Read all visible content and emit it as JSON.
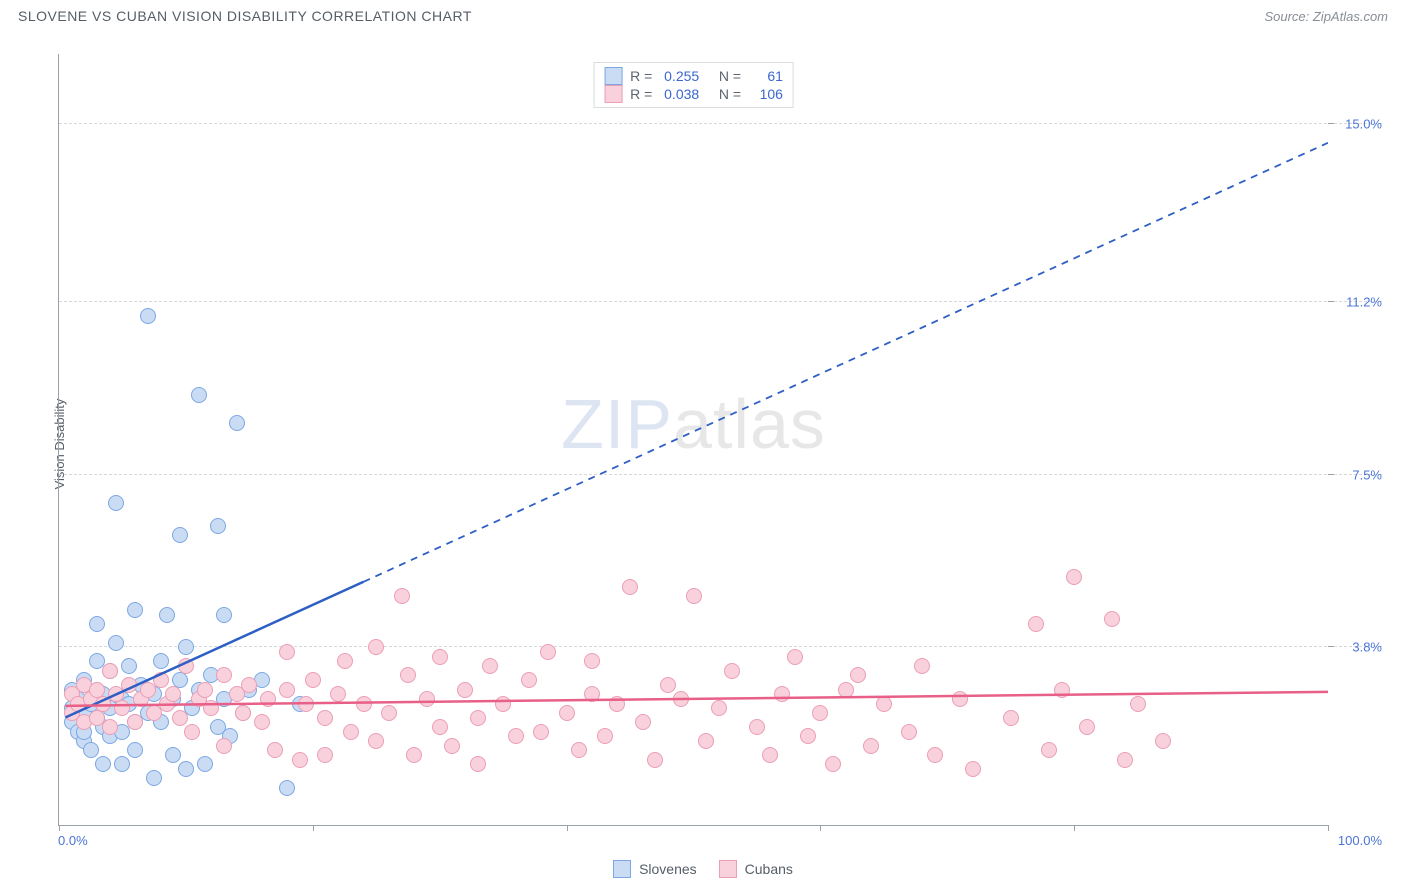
{
  "title": "SLOVENE VS CUBAN VISION DISABILITY CORRELATION CHART",
  "source": "Source: ZipAtlas.com",
  "yaxis_label": "Vision Disability",
  "watermark": {
    "zip": "ZIP",
    "atlas": "atlas"
  },
  "axes": {
    "x_min_label": "0.0%",
    "x_max_label": "100.0%",
    "x_min": 0,
    "x_max": 100,
    "y_min": 0,
    "y_max": 16.5,
    "y_gridlines": [
      {
        "v": 3.8,
        "label": "3.8%"
      },
      {
        "v": 7.5,
        "label": "7.5%"
      },
      {
        "v": 11.2,
        "label": "11.2%"
      },
      {
        "v": 15.0,
        "label": "15.0%"
      }
    ],
    "x_ticks": [
      0,
      20,
      40,
      60,
      80,
      100
    ]
  },
  "grid_color": "#d5d9dd",
  "axis_tick_label_color": "#4b74d6",
  "series": [
    {
      "key": "slovenes",
      "name": "Slovenes",
      "fill": "#c9dcf4",
      "stroke": "#7da7e3",
      "line_color": "#2d5fc4",
      "R": "0.255",
      "N": "61",
      "trend": {
        "x1": 0.5,
        "y1": 2.3,
        "x2": 100,
        "y2": 14.6,
        "solid_until_x": 24
      },
      "points": [
        [
          1,
          2.5
        ],
        [
          1,
          2.2
        ],
        [
          1,
          2.9
        ],
        [
          1.5,
          2.0
        ],
        [
          1.5,
          2.7
        ],
        [
          2,
          1.8
        ],
        [
          2,
          2.4
        ],
        [
          2,
          3.1
        ],
        [
          2,
          2.0
        ],
        [
          2.5,
          2.6
        ],
        [
          2.5,
          1.6
        ],
        [
          3,
          2.9
        ],
        [
          3,
          2.3
        ],
        [
          3,
          3.5
        ],
        [
          3,
          4.3
        ],
        [
          3.5,
          2.1
        ],
        [
          3.5,
          2.8
        ],
        [
          3.5,
          1.3
        ],
        [
          4,
          3.3
        ],
        [
          4,
          2.5
        ],
        [
          4,
          1.9
        ],
        [
          4.5,
          6.9
        ],
        [
          4.5,
          3.9
        ],
        [
          5,
          2.7
        ],
        [
          5,
          2.0
        ],
        [
          5,
          1.3
        ],
        [
          5.5,
          3.4
        ],
        [
          5.5,
          2.6
        ],
        [
          6,
          2.2
        ],
        [
          6,
          4.6
        ],
        [
          6,
          1.6
        ],
        [
          6.5,
          3.0
        ],
        [
          7,
          10.9
        ],
        [
          7,
          2.4
        ],
        [
          7.5,
          2.8
        ],
        [
          7.5,
          1.0
        ],
        [
          8,
          3.5
        ],
        [
          8,
          2.2
        ],
        [
          8.5,
          4.5
        ],
        [
          9,
          2.7
        ],
        [
          9,
          1.5
        ],
        [
          9.5,
          6.2
        ],
        [
          9.5,
          3.1
        ],
        [
          10,
          3.8
        ],
        [
          10,
          1.2
        ],
        [
          10.5,
          2.5
        ],
        [
          11,
          9.2
        ],
        [
          11,
          2.9
        ],
        [
          11.5,
          1.3
        ],
        [
          12,
          3.2
        ],
        [
          12.5,
          6.4
        ],
        [
          12.5,
          2.1
        ],
        [
          13,
          2.7
        ],
        [
          13,
          4.5
        ],
        [
          13.5,
          1.9
        ],
        [
          14,
          8.6
        ],
        [
          14.5,
          2.4
        ],
        [
          15,
          2.9
        ],
        [
          16,
          3.1
        ],
        [
          18,
          0.8
        ],
        [
          19,
          2.6
        ]
      ]
    },
    {
      "key": "cubans",
      "name": "Cubans",
      "fill": "#f8d1dc",
      "stroke": "#eb9eb5",
      "line_color": "#e85f87",
      "R": "0.038",
      "N": "106",
      "trend": {
        "x1": 0.5,
        "y1": 2.55,
        "x2": 100,
        "y2": 2.85,
        "solid_until_x": 100
      },
      "points": [
        [
          1,
          2.8
        ],
        [
          1,
          2.4
        ],
        [
          1.5,
          2.6
        ],
        [
          2,
          3.0
        ],
        [
          2,
          2.2
        ],
        [
          2.5,
          2.7
        ],
        [
          3,
          2.9
        ],
        [
          3,
          2.3
        ],
        [
          3.5,
          2.6
        ],
        [
          4,
          3.3
        ],
        [
          4,
          2.1
        ],
        [
          4.5,
          2.8
        ],
        [
          5,
          2.5
        ],
        [
          5.5,
          3.0
        ],
        [
          6,
          2.2
        ],
        [
          6.5,
          2.7
        ],
        [
          7,
          2.9
        ],
        [
          7.5,
          2.4
        ],
        [
          8,
          3.1
        ],
        [
          8.5,
          2.6
        ],
        [
          9,
          2.8
        ],
        [
          9.5,
          2.3
        ],
        [
          10,
          3.4
        ],
        [
          10.5,
          2.0
        ],
        [
          11,
          2.7
        ],
        [
          11.5,
          2.9
        ],
        [
          12,
          2.5
        ],
        [
          13,
          3.2
        ],
        [
          13,
          1.7
        ],
        [
          14,
          2.8
        ],
        [
          14.5,
          2.4
        ],
        [
          15,
          3.0
        ],
        [
          16,
          2.2
        ],
        [
          16.5,
          2.7
        ],
        [
          17,
          1.6
        ],
        [
          18,
          2.9
        ],
        [
          18,
          3.7
        ],
        [
          19,
          1.4
        ],
        [
          19.5,
          2.6
        ],
        [
          20,
          3.1
        ],
        [
          21,
          2.3
        ],
        [
          21,
          1.5
        ],
        [
          22,
          2.8
        ],
        [
          22.5,
          3.5
        ],
        [
          23,
          2.0
        ],
        [
          24,
          2.6
        ],
        [
          25,
          3.8
        ],
        [
          25,
          1.8
        ],
        [
          26,
          2.4
        ],
        [
          27,
          4.9
        ],
        [
          27.5,
          3.2
        ],
        [
          28,
          1.5
        ],
        [
          29,
          2.7
        ],
        [
          30,
          2.1
        ],
        [
          30,
          3.6
        ],
        [
          31,
          1.7
        ],
        [
          32,
          2.9
        ],
        [
          33,
          2.3
        ],
        [
          33,
          1.3
        ],
        [
          34,
          3.4
        ],
        [
          35,
          2.6
        ],
        [
          36,
          1.9
        ],
        [
          37,
          3.1
        ],
        [
          38,
          2.0
        ],
        [
          38.5,
          3.7
        ],
        [
          40,
          2.4
        ],
        [
          41,
          1.6
        ],
        [
          42,
          2.8
        ],
        [
          42,
          3.5
        ],
        [
          43,
          1.9
        ],
        [
          44,
          2.6
        ],
        [
          45,
          5.1
        ],
        [
          46,
          2.2
        ],
        [
          47,
          1.4
        ],
        [
          48,
          3.0
        ],
        [
          49,
          2.7
        ],
        [
          50,
          4.9
        ],
        [
          51,
          1.8
        ],
        [
          52,
          2.5
        ],
        [
          53,
          3.3
        ],
        [
          55,
          2.1
        ],
        [
          56,
          1.5
        ],
        [
          57,
          2.8
        ],
        [
          58,
          3.6
        ],
        [
          59,
          1.9
        ],
        [
          60,
          2.4
        ],
        [
          61,
          1.3
        ],
        [
          62,
          2.9
        ],
        [
          63,
          3.2
        ],
        [
          64,
          1.7
        ],
        [
          65,
          2.6
        ],
        [
          67,
          2.0
        ],
        [
          68,
          3.4
        ],
        [
          69,
          1.5
        ],
        [
          71,
          2.7
        ],
        [
          72,
          1.2
        ],
        [
          75,
          2.3
        ],
        [
          77,
          4.3
        ],
        [
          78,
          1.6
        ],
        [
          79,
          2.9
        ],
        [
          80,
          5.3
        ],
        [
          81,
          2.1
        ],
        [
          83,
          4.4
        ],
        [
          84,
          1.4
        ],
        [
          85,
          2.6
        ],
        [
          87,
          1.8
        ]
      ]
    }
  ],
  "bottom_legend": [
    {
      "key": "slovenes",
      "label": "Slovenes"
    },
    {
      "key": "cubans",
      "label": "Cubans"
    }
  ]
}
